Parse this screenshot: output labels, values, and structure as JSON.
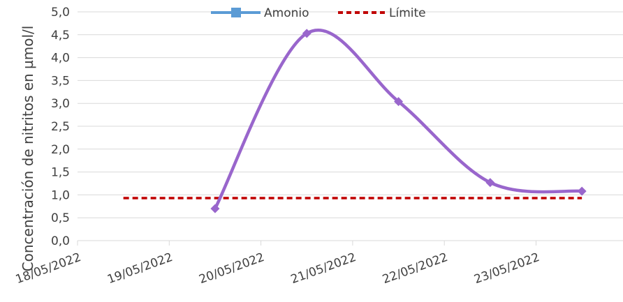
{
  "chart_data": {
    "type": "line",
    "title": "",
    "xlabel": "",
    "ylabel": "Concentración de nitritos en µmol/l",
    "ylim": [
      0,
      5
    ],
    "y_ticks": [
      "0,0",
      "0,5",
      "1,0",
      "1,5",
      "2,0",
      "2,5",
      "3,0",
      "3,5",
      "4,0",
      "4,5",
      "5,0"
    ],
    "x_ticks": [
      "18/05/2022",
      "19/05/2022",
      "20/05/2022",
      "21/05/2022",
      "22/05/2022",
      "23/05/2022"
    ],
    "grid": true,
    "legend_position": "top",
    "series": [
      {
        "name": "Amonio",
        "style": "smooth-line",
        "color": "#9966cc",
        "legend_color": "#5b9bd5",
        "marker": "diamond",
        "points": [
          {
            "x": "19/05/2022 12:00",
            "y": 0.7
          },
          {
            "x": "20/05/2022 12:00",
            "y": 4.53
          },
          {
            "x": "21/05/2022 12:00",
            "y": 3.04
          },
          {
            "x": "22/05/2022 12:00",
            "y": 1.27
          },
          {
            "x": "23/05/2022 12:00",
            "y": 1.08
          }
        ]
      },
      {
        "name": "Límite",
        "style": "dashed-line",
        "color": "#c00000",
        "points": [
          {
            "x": "18/05/2022 12:00",
            "y": 0.93
          },
          {
            "x": "23/05/2022 12:00",
            "y": 0.93
          }
        ]
      }
    ]
  }
}
